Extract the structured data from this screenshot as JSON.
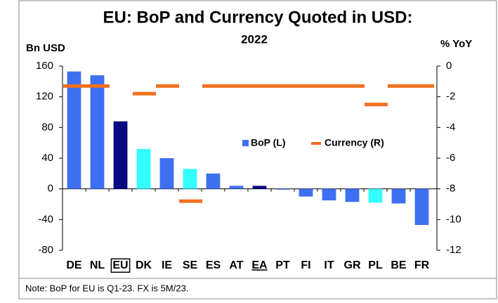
{
  "chart_data": {
    "type": "bar_dash",
    "title": "EU: BoP and Currency Quoted in USD:",
    "subtitle": "2022",
    "y_label": "Bn USD",
    "y2_label": "% YoY",
    "note": "Note: BoP for EU is Q1-23. FX is 5M/23.",
    "categories": [
      "DE",
      "NL",
      "EU",
      "DK",
      "IE",
      "SE",
      "ES",
      "AT",
      "EA",
      "PT",
      "FI",
      "IT",
      "GR",
      "PL",
      "BE",
      "FR"
    ],
    "boxed_category": 2,
    "underlined_category": 8,
    "series": [
      {
        "name": "BoP (L)",
        "color": "#3e6ff0",
        "colors": [
          "#3e6ff0",
          "#3e6ff0",
          "#0a0a80",
          "#33ffff",
          "#3e6ff0",
          "#33ffff",
          "#3e6ff0",
          "#3e6ff0",
          "#0a0a80",
          "#3e6ff0",
          "#3e6ff0",
          "#3e6ff0",
          "#3e6ff0",
          "#33ffff",
          "#3e6ff0",
          "#3e6ff0"
        ],
        "values": [
          153,
          148,
          88,
          52,
          40,
          26,
          20,
          4,
          4,
          -1,
          -10,
          -15,
          -17,
          -18,
          -19,
          -47
        ]
      },
      {
        "name": "Currency (R)",
        "color": "#f07020",
        "axis": "y2",
        "values": [
          -1.3,
          -1.3,
          null,
          -1.8,
          -1.3,
          -8.8,
          -1.3,
          -1.3,
          -1.3,
          -1.3,
          -1.3,
          -1.3,
          -1.3,
          -2.5,
          -1.3,
          -1.3
        ]
      }
    ],
    "ylim": [
      -80,
      160
    ],
    "yticks": [
      -80,
      -40,
      0,
      40,
      80,
      120,
      160
    ],
    "y2lim": [
      -12,
      0
    ],
    "y2ticks": [
      -12,
      -10,
      -8,
      -6,
      -4,
      -2,
      0
    ]
  }
}
